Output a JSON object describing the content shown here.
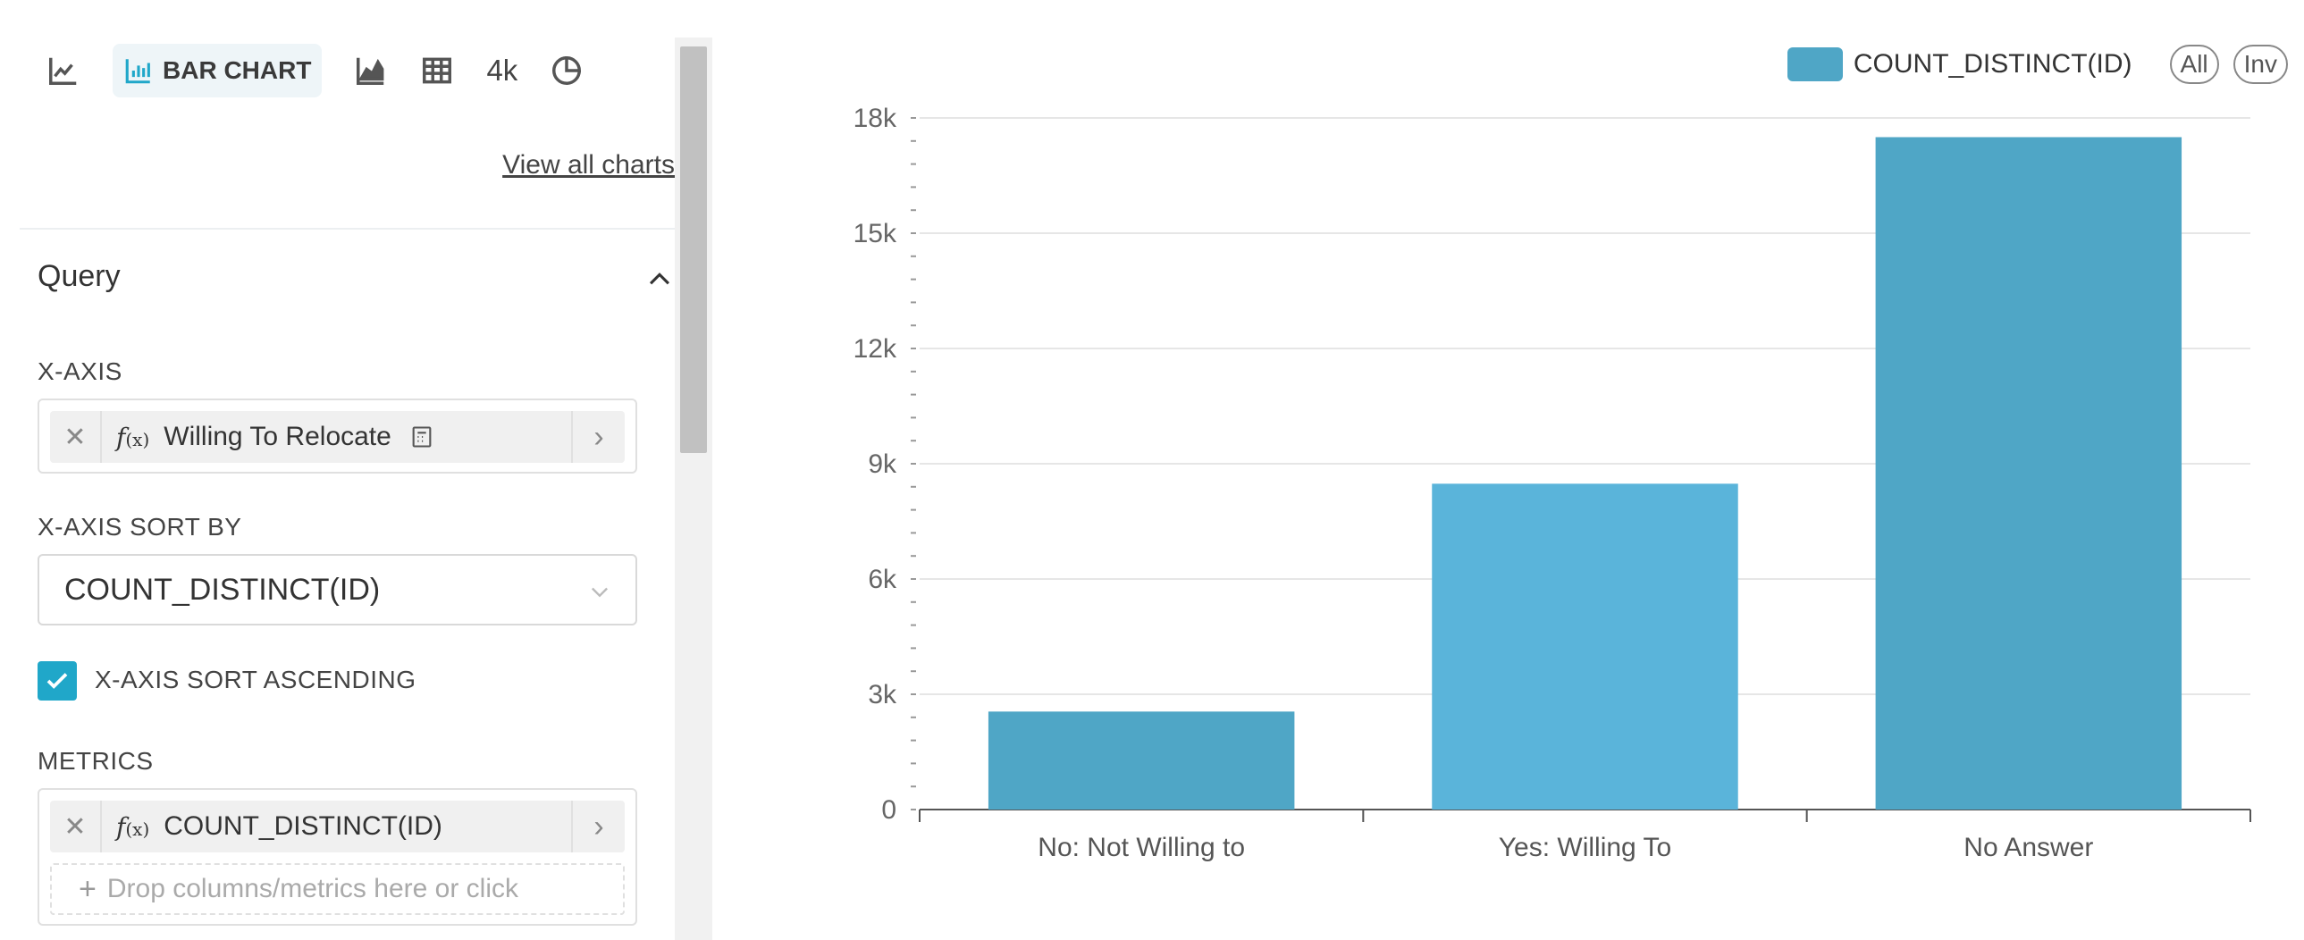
{
  "viz_types": {
    "line_chart": "line-chart-icon",
    "bar_chart_label": "BAR CHART",
    "area_chart": "area-chart-icon",
    "table": "table-icon",
    "big_number": "4k",
    "pie_chart": "pie-chart-icon",
    "view_all": "View all charts"
  },
  "query": {
    "title": "Query",
    "x_axis": {
      "label": "X-AXIS",
      "fx": "f",
      "fx_sub": "(x)",
      "value": "Willing To Relocate"
    },
    "x_axis_sort_by": {
      "label": "X-AXIS SORT BY",
      "value": "COUNT_DISTINCT(ID)"
    },
    "x_axis_sort_ascending": {
      "label": "X-AXIS SORT ASCENDING",
      "checked": true
    },
    "metrics": {
      "label": "METRICS",
      "fx": "f",
      "fx_sub": "(x)",
      "value": "COUNT_DISTINCT(ID)",
      "drop_placeholder": "Drop columns/metrics here or click"
    }
  },
  "legend": {
    "label": "COUNT_DISTINCT(ID)",
    "all_btn": "All",
    "inv_btn": "Inv"
  },
  "colors": {
    "accent": "#20a7c9",
    "bar": "#4fa6c6",
    "bar_highlight": "#5ab4da"
  },
  "chart_data": {
    "type": "bar",
    "categories": [
      "No: Not Willing to",
      "Yes: Willing To",
      "No Answer"
    ],
    "series": [
      {
        "name": "COUNT_DISTINCT(ID)",
        "values": [
          2550,
          8480,
          17500
        ]
      }
    ],
    "ylim": [
      0,
      18000
    ],
    "yticks": [
      "0",
      "3k",
      "6k",
      "9k",
      "12k",
      "15k",
      "18k"
    ],
    "grid": true,
    "legend_position": "top-right"
  }
}
